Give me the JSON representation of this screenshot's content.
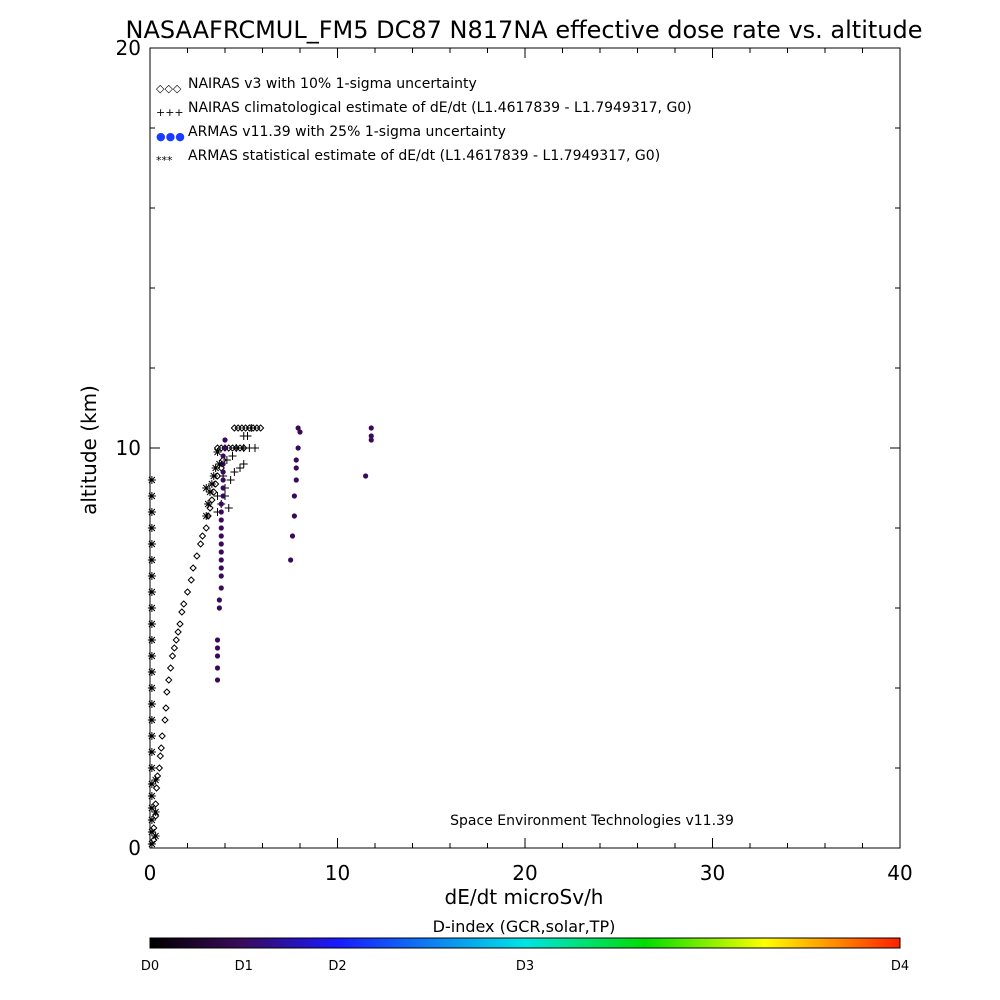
{
  "chart_data": {
    "type": "scatter",
    "title": "NASAAFRCMUL_FM5 DC87 N817NA effective dose rate vs. altitude",
    "xlabel": "dE/dt microSv/h",
    "ylabel": "altitude (km)",
    "xlim": [
      0,
      40
    ],
    "ylim": [
      0,
      20
    ],
    "x_ticks": [
      "0",
      "10",
      "20",
      "30",
      "40"
    ],
    "y_ticks": [
      "0",
      "10",
      "20"
    ],
    "grid": false,
    "legend_placement": "top-left",
    "legend": [
      {
        "symbol": "◇◇◇",
        "label": "NAIRAS v3 with 10% 1-sigma uncertainty"
      },
      {
        "symbol": "+++",
        "label": "NAIRAS climatological estimate of dE/dt (L1.4617839 - L1.7949317, G0)"
      },
      {
        "symbol": "●●●",
        "label": "ARMAS v11.39 with 25% 1-sigma uncertainty"
      },
      {
        "symbol": "***",
        "label": "ARMAS statistical estimate of dE/dt (L1.4617839 - L1.7949317, G0)"
      }
    ],
    "annotation": "Space Environment Technologies v11.39",
    "colorbar": {
      "title": "D-index (GCR,solar,TP)",
      "labels": [
        "D0",
        "D1",
        "D2",
        "D3",
        "D4"
      ],
      "label_positions": [
        0,
        0.125,
        0.25,
        0.5,
        1.0
      ],
      "stops": [
        "#000000",
        "#3a0a5a",
        "#1a1aff",
        "#00e5e5",
        "#00dd00",
        "#ffff00",
        "#ff2000"
      ]
    },
    "series": [
      {
        "name": "NAIRAS v3 with 10% 1-sigma uncertainty",
        "marker": "diamond",
        "color": "#000000",
        "points": [
          [
            0.2,
            0.2
          ],
          [
            0.2,
            0.5
          ],
          [
            0.3,
            0.8
          ],
          [
            0.3,
            1.1
          ],
          [
            0.35,
            1.5
          ],
          [
            0.4,
            1.8
          ],
          [
            0.5,
            2.0
          ],
          [
            0.55,
            2.3
          ],
          [
            0.6,
            2.5
          ],
          [
            0.65,
            2.8
          ],
          [
            0.8,
            3.2
          ],
          [
            0.85,
            3.5
          ],
          [
            0.9,
            3.9
          ],
          [
            1.0,
            4.2
          ],
          [
            1.1,
            4.5
          ],
          [
            1.2,
            4.8
          ],
          [
            1.3,
            5.0
          ],
          [
            1.4,
            5.2
          ],
          [
            1.5,
            5.4
          ],
          [
            1.6,
            5.6
          ],
          [
            1.7,
            5.9
          ],
          [
            1.8,
            6.1
          ],
          [
            2.0,
            6.4
          ],
          [
            2.2,
            6.7
          ],
          [
            2.3,
            7.0
          ],
          [
            2.5,
            7.3
          ],
          [
            2.7,
            7.6
          ],
          [
            2.8,
            7.8
          ],
          [
            3.0,
            8.0
          ],
          [
            3.1,
            8.3
          ],
          [
            3.2,
            8.5
          ],
          [
            3.3,
            8.7
          ],
          [
            3.4,
            8.9
          ],
          [
            3.5,
            9.1
          ],
          [
            3.6,
            9.3
          ],
          [
            3.8,
            9.5
          ],
          [
            3.9,
            9.7
          ],
          [
            3.6,
            10.0
          ],
          [
            3.8,
            10.0
          ],
          [
            4.0,
            10.0
          ],
          [
            4.2,
            10.0
          ],
          [
            4.4,
            10.0
          ],
          [
            4.6,
            10.0
          ],
          [
            4.8,
            10.0
          ],
          [
            5.0,
            10.0
          ],
          [
            4.5,
            10.5
          ],
          [
            4.7,
            10.5
          ],
          [
            4.9,
            10.5
          ],
          [
            5.1,
            10.5
          ],
          [
            5.3,
            10.5
          ],
          [
            5.5,
            10.5
          ],
          [
            5.7,
            10.5
          ],
          [
            5.9,
            10.5
          ]
        ]
      },
      {
        "name": "NAIRAS climatological estimate of dE/dt (L1.4617839 - L1.7949317, G0)",
        "marker": "plus",
        "color": "#000000",
        "points": [
          [
            3.6,
            8.4
          ],
          [
            3.8,
            8.6
          ],
          [
            4.0,
            8.8
          ],
          [
            4.2,
            8.5
          ],
          [
            4.0,
            9.0
          ],
          [
            4.3,
            9.2
          ],
          [
            4.5,
            9.4
          ],
          [
            4.8,
            9.5
          ],
          [
            5.0,
            9.6
          ],
          [
            4.6,
            10.0
          ],
          [
            5.0,
            10.0
          ],
          [
            5.3,
            10.0
          ],
          [
            5.6,
            10.0
          ],
          [
            5.0,
            10.3
          ],
          [
            5.2,
            10.3
          ],
          [
            5.4,
            10.5
          ],
          [
            3.6,
            8.8
          ],
          [
            3.9,
            9.3
          ],
          [
            4.1,
            9.7
          ],
          [
            4.4,
            9.8
          ]
        ]
      },
      {
        "name": "ARMAS v11.39 with 25% 1-sigma uncertainty",
        "marker": "dot",
        "color": "#3a0a5a",
        "points": [
          [
            3.6,
            4.2
          ],
          [
            3.6,
            4.5
          ],
          [
            3.6,
            4.8
          ],
          [
            3.6,
            5.0
          ],
          [
            3.6,
            5.2
          ],
          [
            3.7,
            6.0
          ],
          [
            3.7,
            6.2
          ],
          [
            3.8,
            6.5
          ],
          [
            3.8,
            6.8
          ],
          [
            3.8,
            7.0
          ],
          [
            3.8,
            7.2
          ],
          [
            3.8,
            7.4
          ],
          [
            3.8,
            7.6
          ],
          [
            3.8,
            7.8
          ],
          [
            3.8,
            8.0
          ],
          [
            3.8,
            8.2
          ],
          [
            3.8,
            8.4
          ],
          [
            3.8,
            8.6
          ],
          [
            3.9,
            8.8
          ],
          [
            3.9,
            9.0
          ],
          [
            3.9,
            9.2
          ],
          [
            3.9,
            9.4
          ],
          [
            3.9,
            9.6
          ],
          [
            3.9,
            9.8
          ],
          [
            4.0,
            10.0
          ],
          [
            4.0,
            10.2
          ],
          [
            7.5,
            7.2
          ],
          [
            7.6,
            7.8
          ],
          [
            7.7,
            8.3
          ],
          [
            7.7,
            8.8
          ],
          [
            7.8,
            9.2
          ],
          [
            7.8,
            9.5
          ],
          [
            7.8,
            9.7
          ],
          [
            7.9,
            10.0
          ],
          [
            7.9,
            10.5
          ],
          [
            8.0,
            10.4
          ],
          [
            11.5,
            9.3
          ],
          [
            11.8,
            10.2
          ],
          [
            11.8,
            10.3
          ],
          [
            11.8,
            10.5
          ]
        ]
      },
      {
        "name": "ARMAS statistical estimate of dE/dt (L1.4617839 - L1.7949317, G0)",
        "marker": "asterisk",
        "color": "#000000",
        "points": [
          [
            0.1,
            0.1
          ],
          [
            0.1,
            0.4
          ],
          [
            0.1,
            0.7
          ],
          [
            0.1,
            1.0
          ],
          [
            0.1,
            1.3
          ],
          [
            0.1,
            1.6
          ],
          [
            0.1,
            2.0
          ],
          [
            0.1,
            2.4
          ],
          [
            0.1,
            2.8
          ],
          [
            0.1,
            3.2
          ],
          [
            0.1,
            3.6
          ],
          [
            0.1,
            4.0
          ],
          [
            0.1,
            4.4
          ],
          [
            0.1,
            4.8
          ],
          [
            0.1,
            5.2
          ],
          [
            0.1,
            5.6
          ],
          [
            0.1,
            6.0
          ],
          [
            0.1,
            6.4
          ],
          [
            0.1,
            6.8
          ],
          [
            0.1,
            7.2
          ],
          [
            0.1,
            7.6
          ],
          [
            0.1,
            8.0
          ],
          [
            0.1,
            8.4
          ],
          [
            0.1,
            8.8
          ],
          [
            0.1,
            9.2
          ],
          [
            0.3,
            0.3
          ],
          [
            0.3,
            0.9
          ],
          [
            0.3,
            1.7
          ],
          [
            3.0,
            8.3
          ],
          [
            3.1,
            8.6
          ],
          [
            3.2,
            8.9
          ],
          [
            3.3,
            9.1
          ],
          [
            3.4,
            9.3
          ],
          [
            3.5,
            9.5
          ],
          [
            3.0,
            9.0
          ],
          [
            3.7,
            9.6
          ],
          [
            3.6,
            9.9
          ]
        ]
      }
    ]
  }
}
